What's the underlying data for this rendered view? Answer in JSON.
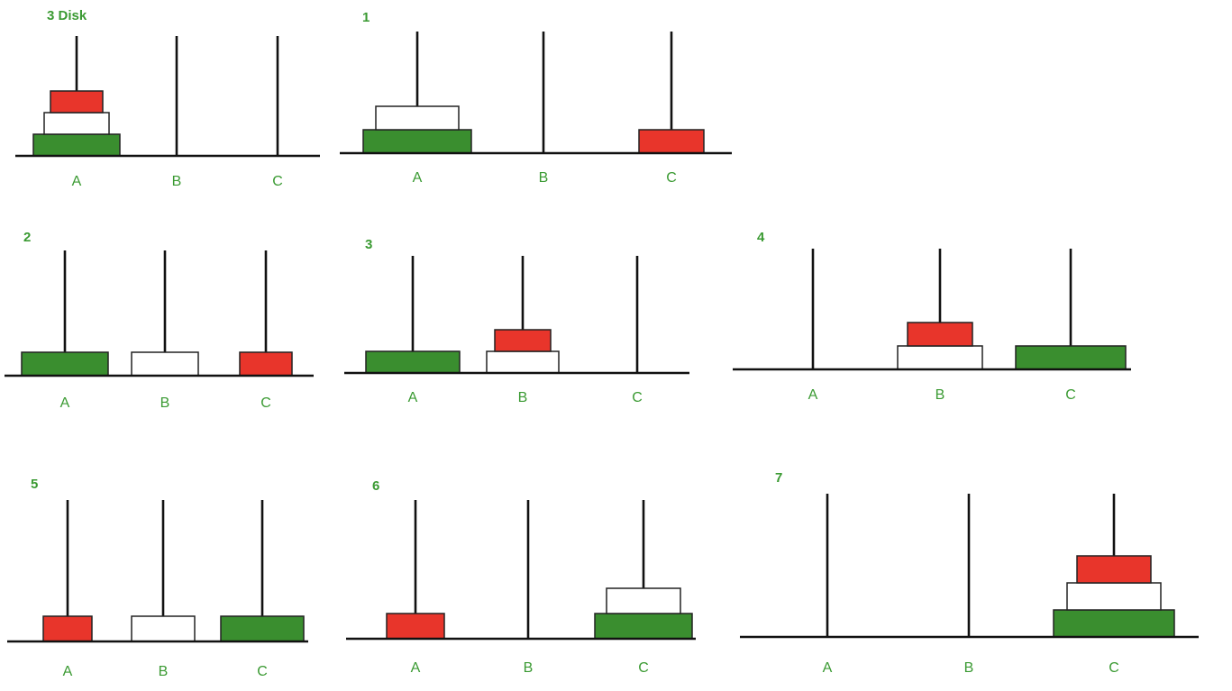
{
  "colors": {
    "red": "#e8352b",
    "white": "#ffffff",
    "green": "#3a8e2f",
    "label": "#3a9a32",
    "line": "#111111"
  },
  "panels": [
    {
      "title": "3 Disk",
      "pegs": [
        {
          "label": "A",
          "disks": [
            "green",
            "white",
            "red"
          ]
        },
        {
          "label": "B",
          "disks": []
        },
        {
          "label": "C",
          "disks": []
        }
      ]
    },
    {
      "title": "1",
      "pegs": [
        {
          "label": "A",
          "disks": [
            "green",
            "white"
          ]
        },
        {
          "label": "B",
          "disks": []
        },
        {
          "label": "C",
          "disks": [
            "red"
          ]
        }
      ]
    },
    {
      "title": "2",
      "pegs": [
        {
          "label": "A",
          "disks": [
            "green"
          ]
        },
        {
          "label": "B",
          "disks": [
            "white"
          ]
        },
        {
          "label": "C",
          "disks": [
            "red"
          ]
        }
      ]
    },
    {
      "title": "3",
      "pegs": [
        {
          "label": "A",
          "disks": [
            "green"
          ]
        },
        {
          "label": "B",
          "disks": [
            "white",
            "red"
          ]
        },
        {
          "label": "C",
          "disks": []
        }
      ]
    },
    {
      "title": "4",
      "pegs": [
        {
          "label": "A",
          "disks": []
        },
        {
          "label": "B",
          "disks": [
            "white",
            "red"
          ]
        },
        {
          "label": "C",
          "disks": [
            "green"
          ]
        }
      ]
    },
    {
      "title": "5",
      "pegs": [
        {
          "label": "A",
          "disks": [
            "red"
          ]
        },
        {
          "label": "B",
          "disks": [
            "white"
          ]
        },
        {
          "label": "C",
          "disks": [
            "green"
          ]
        }
      ]
    },
    {
      "title": "6",
      "pegs": [
        {
          "label": "A",
          "disks": [
            "red"
          ]
        },
        {
          "label": "B",
          "disks": []
        },
        {
          "label": "C",
          "disks": [
            "green",
            "white"
          ]
        }
      ]
    },
    {
      "title": "7",
      "pegs": [
        {
          "label": "A",
          "disks": []
        },
        {
          "label": "B",
          "disks": []
        },
        {
          "label": "C",
          "disks": [
            "green",
            "white",
            "red"
          ]
        }
      ]
    }
  ]
}
